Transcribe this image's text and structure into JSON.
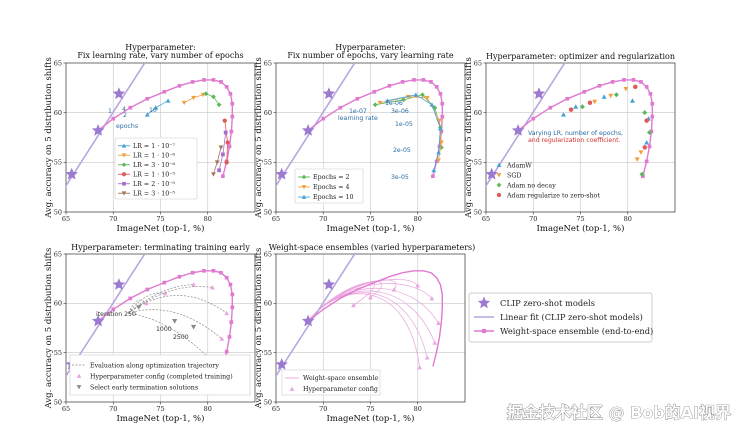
{
  "colors": {
    "star": "#9b7ad0",
    "linear": "#b8a6e0",
    "ensemble": "#e07ad0",
    "grid": "#c8c8c8",
    "blue": "#4aa3d6",
    "orange": "#f0a040",
    "green": "#5cb85c",
    "red": "#e05a5a",
    "purple": "#a96fd0",
    "brown": "#a0785a",
    "pink": "#e58ad0",
    "gray": "#8a8a8a"
  },
  "shared": {
    "xlabel": "ImageNet (top-1, %)",
    "ylabel": "Avg. accuracy on 5 distribution shifts",
    "xlim": [
      65,
      85
    ],
    "ylim": [
      50,
      65
    ],
    "xticks": [
      "65",
      "70",
      "75",
      "80"
    ],
    "yticks": [
      "50",
      "55",
      "60",
      "65"
    ]
  },
  "chart_data": [
    {
      "type": "scatter",
      "title": "Hyperparameter:\nFix learning rate, vary number of epochs",
      "legend": [
        "LR = 1 · 10⁻⁷",
        "LR = 1 · 10⁻⁶",
        "LR = 3 · 10⁻⁶",
        "LR = 1 · 10⁻⁵",
        "LR = 2 · 10⁻⁵",
        "LR = 3 · 10⁻⁵"
      ],
      "annotations": [
        "1",
        "2",
        "4",
        "10",
        "epochs"
      ],
      "series": [
        {
          "name": "LR = 1 · 10⁻⁷",
          "x": [
            73.6,
            74.5,
            75.8
          ],
          "y": [
            59.8,
            60.5,
            61.2
          ]
        },
        {
          "name": "LR = 1 · 10⁻⁶",
          "x": [
            77.5,
            78.5,
            79.5
          ],
          "y": [
            61.0,
            61.5,
            61.8
          ]
        },
        {
          "name": "LR = 3 · 10⁻⁶",
          "x": [
            79.8,
            80.6,
            81.2
          ],
          "y": [
            61.9,
            61.6,
            60.8
          ]
        },
        {
          "name": "LR = 1 · 10⁻⁵",
          "x": [
            81.8,
            82.1,
            82.0
          ],
          "y": [
            59.2,
            57.0,
            55.0
          ]
        },
        {
          "name": "LR = 2 · 10⁻⁵",
          "x": [
            81.9,
            81.6,
            81.2
          ],
          "y": [
            58.0,
            55.8,
            54.2
          ]
        },
        {
          "name": "LR = 3 · 10⁻⁵",
          "x": [
            81.4,
            81.0,
            80.6
          ],
          "y": [
            56.5,
            55.0,
            53.8
          ]
        }
      ]
    },
    {
      "type": "scatter",
      "title": "Hyperparameter:\nFix number of epochs, vary learning rate",
      "legend": [
        "Epochs = 2",
        "Epochs = 4",
        "Epochs = 10"
      ],
      "annotations": [
        "1e-07",
        "1e-06",
        "3e-06",
        "1e-05",
        "2e-05",
        "3e-05",
        "learning rate"
      ],
      "series": [
        {
          "name": "Epochs = 2",
          "x": [
            75.5,
            78.5,
            80.5,
            81.8,
            82.4,
            82.5
          ],
          "y": [
            60.8,
            61.3,
            61.8,
            60.5,
            58.5,
            56.5
          ]
        },
        {
          "name": "Epochs = 4",
          "x": [
            76.0,
            79.0,
            81.0,
            82.3,
            82.5,
            82.2
          ],
          "y": [
            61.0,
            61.6,
            61.5,
            59.2,
            57.0,
            55.2
          ]
        },
        {
          "name": "Epochs = 10",
          "x": [
            76.8,
            79.8,
            81.5,
            82.4,
            82.2,
            81.7
          ],
          "y": [
            61.2,
            61.8,
            60.8,
            58.4,
            56.0,
            54.2
          ]
        }
      ]
    },
    {
      "type": "scatter",
      "title": "Hyperparameter: optimizer and regularization",
      "annotation": "Varying LR, number of epochs,\nand regularization coefficient.",
      "legend": [
        "AdamW",
        "SGD",
        "Adam no decay",
        "Adam regularize to zero-shot"
      ],
      "series": [
        {
          "name": "AdamW",
          "x": [
            73.2,
            74.5,
            77.5,
            80.5,
            82.2,
            82.0
          ],
          "y": [
            59.8,
            60.6,
            61.6,
            61.2,
            59.4,
            57.0
          ]
        },
        {
          "name": "SGD",
          "x": [
            76.5,
            78.2,
            79.8,
            81.4,
            81.0
          ],
          "y": [
            61.1,
            61.7,
            62.4,
            56.0,
            55.3
          ]
        },
        {
          "name": "Adam no decay",
          "x": [
            75.2,
            78.8,
            81.8,
            82.3,
            81.5
          ],
          "y": [
            60.6,
            61.8,
            60.0,
            58.0,
            53.8
          ]
        },
        {
          "name": "Adam regularize to zero-shot",
          "x": [
            74.0,
            76.0,
            80.8,
            82.0,
            81.8
          ],
          "y": [
            60.3,
            61.0,
            62.6,
            59.2,
            56.5
          ]
        }
      ]
    },
    {
      "type": "line",
      "title": "Hyperparameter: terminating training early",
      "legend": [
        "Evaluation along optimization trajectory",
        "Hyperparameter config (completed training)",
        "Select early termination solutions"
      ],
      "annotations": [
        "iteration 250",
        "1000",
        "2500"
      ],
      "series": [
        {
          "name": "Select early termination solutions",
          "x": [
            72.7,
            76.5,
            78.5
          ],
          "y": [
            59.6,
            58.2,
            57.6
          ]
        },
        {
          "name": "Hyperparameter config (completed training)",
          "x": [
            73.5,
            75.5,
            78.5,
            80.5,
            82.0,
            81.5,
            80.6
          ],
          "y": [
            60.0,
            61.0,
            61.9,
            61.6,
            59.0,
            56.4,
            54.0
          ]
        }
      ]
    },
    {
      "type": "line",
      "title": "Weight-space ensembles (varied hyperparameters)",
      "legend": [
        "Weight-space ensemble",
        "Hyperparameter config"
      ],
      "series": [
        {
          "name": "Hyperparameter config",
          "x": [
            73.2,
            75.0,
            77.5,
            80.0,
            81.5,
            82.2,
            81.8,
            81.0,
            80.2
          ],
          "y": [
            59.8,
            60.6,
            61.4,
            61.8,
            60.5,
            58.0,
            56.0,
            54.5,
            53.5
          ]
        }
      ]
    }
  ],
  "common_series": {
    "zero_shot": {
      "name": "CLIP zero-shot models",
      "x": [
        65.6,
        68.4,
        70.6
      ],
      "y": [
        53.8,
        58.2,
        61.9
      ]
    },
    "linear_fit": {
      "name": "Linear fit (CLIP zero-shot models)",
      "x": [
        64.5,
        74.0
      ],
      "y": [
        51.9,
        66.0
      ]
    },
    "ensemble": {
      "name": "Weight-space ensemble (end-to-end)",
      "x": [
        68.4,
        70.0,
        71.8,
        73.6,
        75.4,
        77.0,
        78.4,
        79.6,
        80.6,
        81.4,
        82.0,
        82.4,
        82.6,
        82.6,
        82.5,
        82.3,
        82.0,
        81.6
      ],
      "y": [
        58.2,
        59.4,
        60.5,
        61.4,
        62.1,
        62.7,
        63.1,
        63.3,
        63.3,
        63.1,
        62.6,
        61.9,
        60.9,
        59.6,
        58.1,
        56.6,
        55.1,
        53.6
      ]
    }
  },
  "big_legend": [
    "CLIP zero-shot models",
    "Linear fit (CLIP zero-shot models)",
    "Weight-space ensemble (end-to-end)"
  ],
  "watermark": "掘金技术社区 @ Bob的AI视界"
}
